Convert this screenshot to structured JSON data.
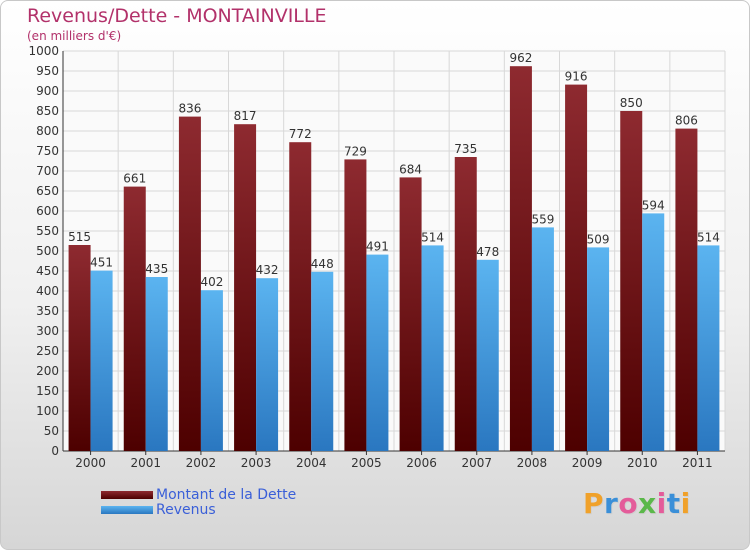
{
  "title": "Revenus/Dette - MONTAINVILLE",
  "subtitle": "(en milliers d'€)",
  "logo_text": "Proxiti",
  "chart_data": {
    "type": "bar",
    "title": "Revenus/Dette - MONTAINVILLE",
    "ylabel": "(en milliers d'€)",
    "xlabel": "",
    "ylim": [
      0,
      1000
    ],
    "ytick_step": 50,
    "grid": true,
    "legend_position": "bottom-left",
    "categories": [
      "2000",
      "2001",
      "2002",
      "2003",
      "2004",
      "2005",
      "2006",
      "2007",
      "2008",
      "2009",
      "2010",
      "2011"
    ],
    "series": [
      {
        "name": "Montant de la Dette",
        "color": "#7a1f24",
        "values": [
          515,
          661,
          836,
          817,
          772,
          729,
          684,
          735,
          962,
          916,
          850,
          806
        ]
      },
      {
        "name": "Revenus",
        "color": "#4aa3e6",
        "values": [
          451,
          435,
          402,
          432,
          448,
          491,
          514,
          478,
          559,
          509,
          594,
          514
        ]
      }
    ]
  }
}
